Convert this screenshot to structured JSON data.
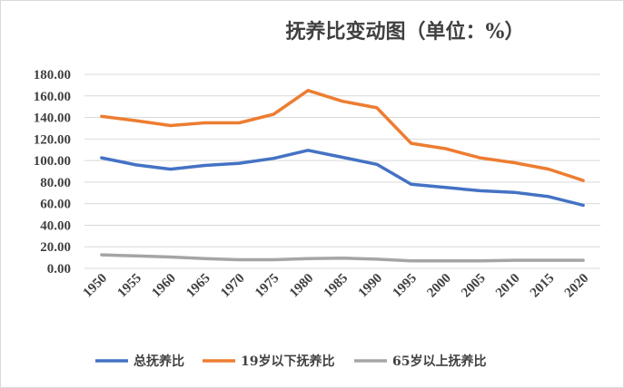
{
  "chart_data": {
    "type": "line",
    "title": "抚养比变动图（单位：%）",
    "xlabel": "",
    "ylabel": "",
    "categories": [
      "1950",
      "1955",
      "1960",
      "1965",
      "1970",
      "1975",
      "1980",
      "1985",
      "1990",
      "1995",
      "2000",
      "2005",
      "2010",
      "2015",
      "2020"
    ],
    "ylim": [
      0,
      180
    ],
    "yticks": [
      "0.00",
      "20.00",
      "40.00",
      "60.00",
      "80.00",
      "100.00",
      "120.00",
      "140.00",
      "160.00",
      "180.00"
    ],
    "grid": true,
    "legend_position": "bottom",
    "series": [
      {
        "name": "总抚养比",
        "color": "#4472c4",
        "values": [
          102.5,
          96,
          92,
          95.5,
          97.5,
          102,
          109.5,
          103,
          96.5,
          78,
          75,
          72,
          70.5,
          66.5,
          58.5
        ]
      },
      {
        "name": "19岁以下抚养比",
        "color": "#ed7d31",
        "values": [
          141,
          137,
          132.5,
          135,
          135,
          143,
          165,
          155,
          149,
          116,
          111,
          102.5,
          98,
          92,
          81.5
        ]
      },
      {
        "name": "65岁以上抚养比",
        "color": "#a5a5a5",
        "values": [
          12.5,
          11.5,
          10.5,
          9,
          8,
          8,
          9,
          9.5,
          8.5,
          7,
          7,
          7,
          7.5,
          7.5,
          7.5
        ]
      }
    ]
  }
}
